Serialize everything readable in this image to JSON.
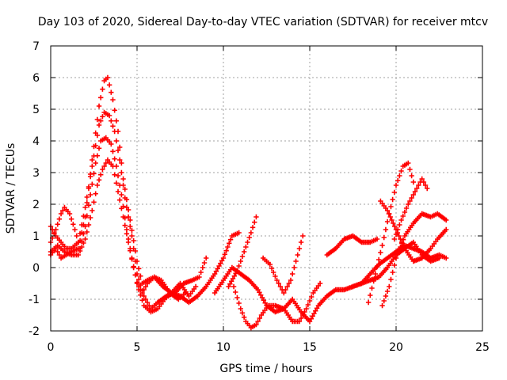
{
  "chart_data": {
    "type": "scatter",
    "title": "Day 103 of 2020, Sidereal Day-to-day VTEC variation (SDTVAR) for receiver mtcv",
    "xlabel": "GPS time / hours",
    "ylabel": "SDTVAR / TECUs",
    "xlim": [
      0,
      25
    ],
    "ylim": [
      -2,
      7
    ],
    "xticks": [
      "0",
      "5",
      "10",
      "15",
      "20",
      "25"
    ],
    "yticks": [
      "-2",
      "-1",
      "0",
      "1",
      "2",
      "3",
      "4",
      "5",
      "6",
      "7"
    ],
    "grid": true,
    "legend": "none",
    "marker": "plus",
    "color": "#ff0000",
    "series": [
      {
        "x": [
          0.0,
          0.3,
          0.6,
          0.9,
          1.2,
          1.6,
          2.0,
          2.4,
          2.8,
          3.1,
          3.3,
          3.6,
          3.9,
          4.2,
          4.6,
          5.0,
          5.3,
          5.6,
          6.0,
          6.5,
          7.0,
          7.5,
          8.0,
          8.4
        ],
        "y": [
          0.4,
          0.6,
          0.3,
          0.4,
          0.5,
          0.6,
          1.6,
          3.4,
          5.1,
          5.9,
          6.0,
          5.3,
          4.3,
          2.8,
          1.5,
          0.2,
          -0.5,
          -0.4,
          -0.3,
          -0.6,
          -0.8,
          -0.5,
          -0.9,
          -0.6
        ]
      },
      {
        "x": [
          0.0,
          0.3,
          0.6,
          0.9,
          1.2,
          1.6,
          2.0,
          2.4,
          2.8,
          3.1,
          3.4,
          3.7,
          4.0,
          4.3,
          4.7,
          5.0,
          5.4,
          5.8,
          6.2,
          6.7,
          7.2,
          7.7,
          8.2,
          8.6,
          9.0
        ],
        "y": [
          1.3,
          1.0,
          0.8,
          0.6,
          0.6,
          0.8,
          1.9,
          3.2,
          4.5,
          4.9,
          4.8,
          4.3,
          3.4,
          2.2,
          1.0,
          -0.2,
          -0.9,
          -1.3,
          -1.1,
          -0.9,
          -0.8,
          -0.5,
          -0.4,
          -0.3,
          0.3
        ]
      },
      {
        "x": [
          0.0,
          0.3,
          0.6,
          0.8,
          1.1,
          1.4,
          1.7,
          2.0,
          2.3,
          2.6,
          2.9,
          3.2,
          3.5,
          3.8,
          4.1,
          4.4,
          4.7,
          5.0,
          5.3,
          5.6,
          6.0,
          6.4,
          6.9,
          7.4,
          7.8
        ],
        "y": [
          0.8,
          1.2,
          1.7,
          1.9,
          1.7,
          1.2,
          0.6,
          1.3,
          2.3,
          3.3,
          4.0,
          4.1,
          3.9,
          3.2,
          2.3,
          1.2,
          0.3,
          -0.5,
          -0.8,
          -0.5,
          -0.3,
          -0.4,
          -0.8,
          -1.0,
          -0.8
        ]
      },
      {
        "x": [
          0.0,
          0.4,
          0.8,
          1.2,
          1.6,
          2.0,
          2.4,
          2.7,
          3.0,
          3.3,
          3.6,
          3.9,
          4.2,
          4.5,
          4.8,
          5.1,
          5.4,
          5.8,
          6.2,
          6.6,
          7.0,
          7.5,
          8.0,
          8.5,
          9.0,
          9.5,
          10.0,
          10.5,
          10.9
        ],
        "y": [
          0.5,
          0.7,
          0.5,
          0.4,
          0.4,
          0.9,
          1.8,
          2.6,
          3.1,
          3.4,
          3.2,
          2.4,
          1.6,
          0.8,
          0.0,
          -0.7,
          -1.2,
          -1.4,
          -1.3,
          -1.0,
          -0.8,
          -0.9,
          -1.1,
          -0.9,
          -0.6,
          -0.2,
          0.3,
          1.0,
          1.1
        ]
      },
      {
        "x": [
          9.5,
          10.0,
          10.5,
          11.0,
          11.5,
          12.0,
          12.5,
          13.0,
          13.5,
          14.0,
          14.5,
          15.0,
          15.5,
          16.0,
          16.5,
          17.0,
          17.5,
          18.0,
          18.5,
          19.0,
          19.5,
          20.0,
          20.5,
          21.0,
          21.5,
          22.0,
          22.5,
          22.9
        ],
        "y": [
          -0.8,
          -0.4,
          0.0,
          -0.2,
          -0.4,
          -0.7,
          -1.2,
          -1.4,
          -1.3,
          -1.0,
          -1.4,
          -1.7,
          -1.2,
          -0.9,
          -0.7,
          -0.7,
          -0.6,
          -0.5,
          -0.2,
          0.1,
          0.3,
          0.5,
          0.7,
          0.6,
          0.5,
          0.3,
          0.4,
          0.3
        ]
      },
      {
        "x": [
          10.6,
          11.0,
          11.3,
          11.6,
          11.9,
          12.2,
          12.6,
          13.0,
          13.5,
          14.0,
          14.4,
          14.8,
          15.2,
          15.6
        ],
        "y": [
          -0.6,
          -1.3,
          -1.7,
          -1.9,
          -1.8,
          -1.5,
          -1.2,
          -1.2,
          -1.3,
          -1.7,
          -1.7,
          -1.3,
          -0.8,
          -0.5
        ]
      },
      {
        "x": [
          10.3,
          10.8,
          11.2,
          11.6,
          11.9
        ],
        "y": [
          -0.6,
          -0.1,
          0.5,
          1.1,
          1.6
        ]
      },
      {
        "x": [
          12.3,
          12.7,
          13.1,
          13.5,
          13.9,
          14.3,
          14.6
        ],
        "y": [
          0.3,
          0.1,
          -0.4,
          -0.8,
          -0.4,
          0.4,
          1.0
        ]
      },
      {
        "x": [
          16.0,
          16.5,
          17.0,
          17.5,
          18.0,
          18.5,
          18.9
        ],
        "y": [
          0.4,
          0.6,
          0.9,
          1.0,
          0.8,
          0.8,
          0.9
        ]
      },
      {
        "x": [
          18.4,
          18.8,
          19.2,
          19.6,
          20.0,
          20.4,
          20.7,
          21.0
        ],
        "y": [
          -1.1,
          -0.2,
          0.7,
          1.7,
          2.6,
          3.2,
          3.3,
          2.7
        ]
      },
      {
        "x": [
          19.2,
          19.6,
          20.0,
          20.5,
          21.0,
          21.5,
          22.0,
          22.4,
          22.9
        ],
        "y": [
          -1.2,
          -0.6,
          0.3,
          1.0,
          1.4,
          1.7,
          1.6,
          1.7,
          1.5
        ]
      },
      {
        "x": [
          19.9,
          20.3,
          20.7,
          21.1,
          21.5,
          21.8
        ],
        "y": [
          0.9,
          1.5,
          2.0,
          2.4,
          2.8,
          2.5
        ]
      },
      {
        "x": [
          19.1,
          19.5,
          20.0,
          20.5,
          21.0,
          21.5,
          22.0,
          22.4,
          22.9
        ],
        "y": [
          2.1,
          1.8,
          1.2,
          0.6,
          0.2,
          0.3,
          0.6,
          0.9,
          1.2
        ]
      },
      {
        "x": [
          17.5,
          18.0,
          18.5,
          19.0,
          19.5,
          20.0,
          20.5,
          21.0,
          21.5,
          22.0,
          22.5
        ],
        "y": [
          -0.6,
          -0.5,
          -0.4,
          -0.3,
          0.0,
          0.4,
          0.6,
          0.8,
          0.4,
          0.2,
          0.3
        ]
      }
    ]
  }
}
